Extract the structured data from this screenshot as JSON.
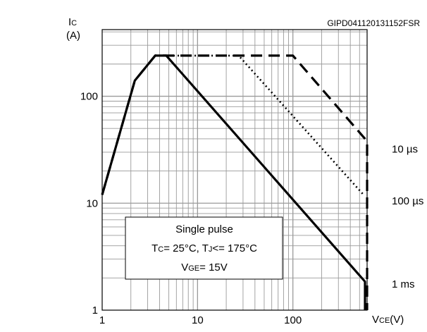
{
  "figure_code": "GIPD041120131152FSR",
  "y_axis": {
    "symbol": "I",
    "subscript": "C",
    "unit": "(A)"
  },
  "x_axis": {
    "symbol": "V",
    "subscript": "CE",
    "unit": "(V)"
  },
  "annotation": {
    "line1": "Single pulse",
    "line2": {
      "p1": "T",
      "s1": "C",
      "p2": "= 25°C, T",
      "s2": "J",
      "p3": "<= 175°C"
    },
    "line3": {
      "p1": "V",
      "s1": "GE",
      "p2": "= 15V"
    }
  },
  "colors": {
    "axis": "#000000",
    "grid": "#9a9a9a",
    "curve": "#000000",
    "background": "#ffffff"
  },
  "chart_data": {
    "type": "line",
    "x_scale": "log",
    "y_scale": "log",
    "xlim": [
      1,
      600
    ],
    "ylim": [
      1,
      420
    ],
    "grid": true,
    "x_ticks": [
      {
        "value": 1,
        "label": "1"
      },
      {
        "value": 10,
        "label": "10"
      },
      {
        "value": 100,
        "label": "100"
      }
    ],
    "y_ticks": [
      {
        "value": 1,
        "label": "1"
      },
      {
        "value": 10,
        "label": "10"
      },
      {
        "value": 100,
        "label": "100"
      }
    ],
    "series": [
      {
        "name": "10 µs",
        "style": "dashed",
        "points": [
          [
            1,
            12
          ],
          [
            2.2,
            140
          ],
          [
            3.6,
            240
          ],
          [
            4.7,
            240
          ],
          [
            27,
            240
          ],
          [
            100,
            240
          ],
          [
            600,
            38
          ],
          [
            600,
            1
          ]
        ]
      },
      {
        "name": "100 µs",
        "style": "dotted",
        "points": [
          [
            1,
            12
          ],
          [
            2.2,
            140
          ],
          [
            3.6,
            240
          ],
          [
            4.7,
            240
          ],
          [
            27,
            240
          ],
          [
            550,
            12
          ],
          [
            570,
            12
          ]
        ]
      },
      {
        "name": "1 ms",
        "style": "solid",
        "points": [
          [
            1,
            12
          ],
          [
            2.2,
            140
          ],
          [
            3.6,
            240
          ],
          [
            4.7,
            240
          ],
          [
            570,
            1.85
          ],
          [
            570,
            1
          ]
        ]
      }
    ],
    "curve_labels": [
      {
        "series": "10 µs",
        "at_y": 32,
        "text": "10 µs"
      },
      {
        "series": "100 µs",
        "at_y": 10.5,
        "text": "100 µs"
      },
      {
        "series": "1 ms",
        "at_y": 1.75,
        "text": "1 ms"
      }
    ]
  }
}
